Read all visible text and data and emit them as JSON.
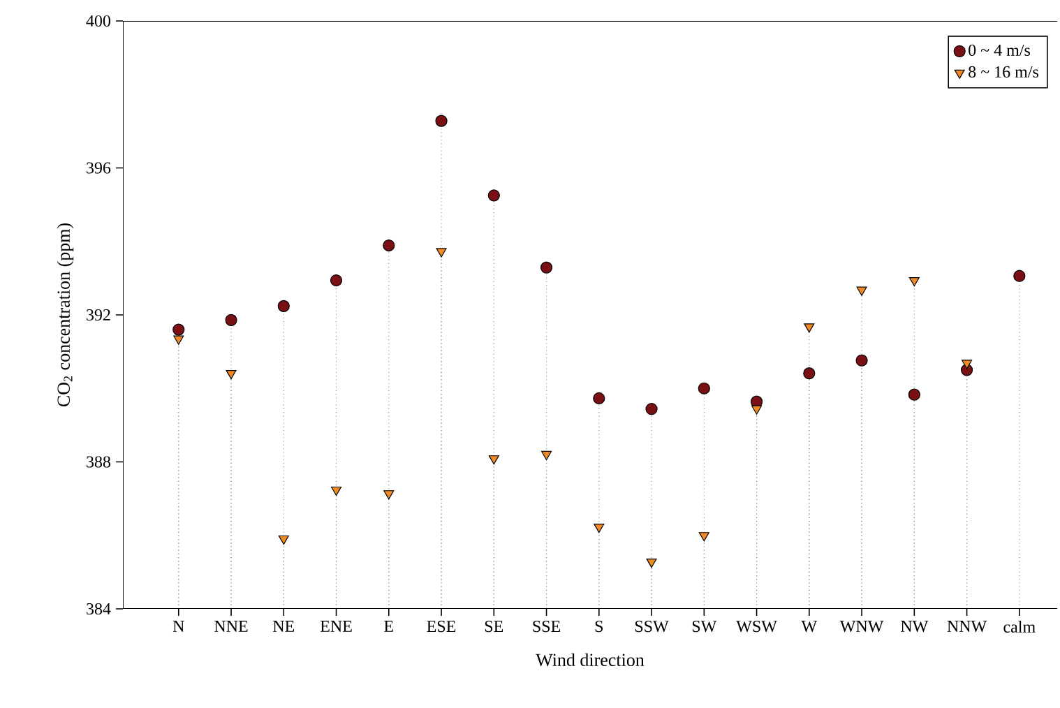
{
  "chart_data": {
    "type": "scatter",
    "xlabel": "Wind direction",
    "ylabel": "CO$_{2}$ concentration (ppm)",
    "categories": [
      "N",
      "NNE",
      "NE",
      "ENE",
      "E",
      "ESE",
      "SE",
      "SSE",
      "S",
      "SSW",
      "SW",
      "WSW",
      "W",
      "WNW",
      "NW",
      "NNW",
      "calm"
    ],
    "series": [
      {
        "name": "0 ~ 4 m/s",
        "color": "#7a1014",
        "marker": "circle",
        "values": [
          391.6,
          391.86,
          392.24,
          392.94,
          393.89,
          397.28,
          395.25,
          393.29,
          389.73,
          389.44,
          390.0,
          389.64,
          390.41,
          390.76,
          389.83,
          390.5,
          393.06
        ]
      },
      {
        "name": "8 ~ 16 m/s",
        "color": "#f08a24",
        "marker": "triangle",
        "values": [
          391.35,
          390.41,
          385.91,
          387.24,
          387.14,
          393.73,
          388.09,
          388.21,
          386.23,
          385.28,
          386.0,
          389.45,
          391.68,
          392.68,
          392.94,
          390.69,
          null
        ]
      }
    ],
    "ylim": [
      384,
      400
    ],
    "yticks": [
      384,
      388,
      392,
      396,
      400
    ],
    "legend": "top right",
    "grid": "x"
  }
}
